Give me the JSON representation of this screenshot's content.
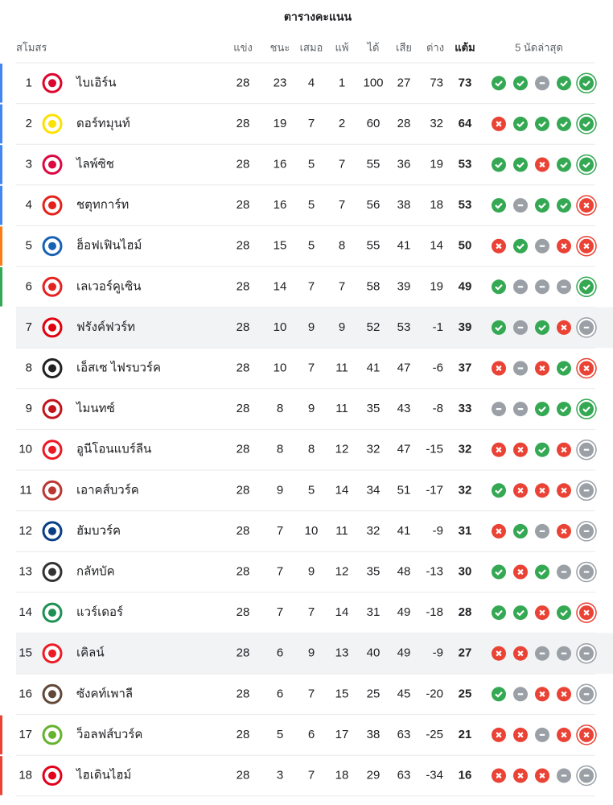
{
  "table": {
    "title": "ตารางคะแนน",
    "headers": [
      "สโมสร",
      "แข่ง",
      "ชนะ",
      "เสมอ",
      "แพ้",
      "ได้",
      "เสีย",
      "ต่าง",
      "แต้ม",
      "5 นัดล่าสุด"
    ],
    "rows": [
      {
        "rank": 1,
        "team": "ไบเอิร์น",
        "stats": [
          28,
          23,
          4,
          1,
          100,
          27,
          73,
          73
        ],
        "form": [
          "W",
          "W",
          "D",
          "W",
          "W"
        ],
        "zone": "#4285f4",
        "crest": "#dc052d"
      },
      {
        "rank": 2,
        "team": "ดอร์ทมุนท์",
        "stats": [
          28,
          19,
          7,
          2,
          60,
          28,
          32,
          64
        ],
        "form": [
          "L",
          "W",
          "W",
          "W",
          "W"
        ],
        "zone": "#4285f4",
        "crest": "#fde100"
      },
      {
        "rank": 3,
        "team": "ไลพ์ซิช",
        "stats": [
          28,
          16,
          5,
          7,
          55,
          36,
          19,
          53
        ],
        "form": [
          "W",
          "W",
          "L",
          "W",
          "W"
        ],
        "zone": "#4285f4",
        "crest": "#dd0741"
      },
      {
        "rank": 4,
        "team": "ชตุทการ์ท",
        "stats": [
          28,
          16,
          5,
          7,
          56,
          38,
          18,
          53
        ],
        "form": [
          "W",
          "D",
          "W",
          "W",
          "L"
        ],
        "zone": "#4285f4",
        "crest": "#e32219"
      },
      {
        "rank": 5,
        "team": "ฮ็อฟเฟินไฮม์",
        "stats": [
          28,
          15,
          5,
          8,
          55,
          41,
          14,
          50
        ],
        "form": [
          "L",
          "W",
          "D",
          "L",
          "L"
        ],
        "zone": "#fa7b17",
        "crest": "#1961b5"
      },
      {
        "rank": 6,
        "team": "เลเวอร์คูเซิน",
        "stats": [
          28,
          14,
          7,
          7,
          58,
          39,
          19,
          49
        ],
        "form": [
          "W",
          "D",
          "D",
          "D",
          "W"
        ],
        "zone": "#34a853",
        "crest": "#e32221"
      },
      {
        "rank": 7,
        "team": "ฟรังค์ฟวร์ท",
        "stats": [
          28,
          10,
          9,
          9,
          52,
          53,
          -1,
          39
        ],
        "form": [
          "W",
          "D",
          "W",
          "L",
          "D"
        ],
        "highlight": "#f1f3f4",
        "crest": "#e1000f"
      },
      {
        "rank": 8,
        "team": "เอ็สเซ ไฟรบวร์ค",
        "stats": [
          28,
          10,
          7,
          11,
          41,
          47,
          -6,
          37
        ],
        "form": [
          "L",
          "D",
          "L",
          "W",
          "L"
        ],
        "crest": "#222222"
      },
      {
        "rank": 9,
        "team": "ไมนทซ์",
        "stats": [
          28,
          8,
          9,
          11,
          35,
          43,
          -8,
          33
        ],
        "form": [
          "D",
          "D",
          "W",
          "W",
          "W"
        ],
        "crest": "#c3141e"
      },
      {
        "rank": 10,
        "team": "อูนีโอนแบร์ลีน",
        "stats": [
          28,
          8,
          8,
          12,
          32,
          47,
          -15,
          32
        ],
        "form": [
          "L",
          "L",
          "W",
          "L",
          "D"
        ],
        "crest": "#eb1923"
      },
      {
        "rank": 11,
        "team": "เอาคส์บวร์ค",
        "stats": [
          28,
          9,
          5,
          14,
          34,
          51,
          -17,
          32
        ],
        "form": [
          "W",
          "L",
          "L",
          "L",
          "D"
        ],
        "crest": "#ba3733"
      },
      {
        "rank": 12,
        "team": "ฮัมบวร์ค",
        "stats": [
          28,
          7,
          10,
          11,
          32,
          41,
          -9,
          31
        ],
        "form": [
          "L",
          "W",
          "D",
          "L",
          "D"
        ],
        "crest": "#0a3f86"
      },
      {
        "rank": 13,
        "team": "กลัทบัค",
        "stats": [
          28,
          7,
          9,
          12,
          35,
          48,
          -13,
          30
        ],
        "form": [
          "W",
          "L",
          "W",
          "D",
          "D"
        ],
        "crest": "#333333"
      },
      {
        "rank": 14,
        "team": "แวร์เดอร์",
        "stats": [
          28,
          7,
          7,
          14,
          31,
          49,
          -18,
          28
        ],
        "form": [
          "W",
          "W",
          "L",
          "W",
          "L"
        ],
        "crest": "#1d9053"
      },
      {
        "rank": 15,
        "team": "เคิลน์",
        "stats": [
          28,
          6,
          9,
          13,
          40,
          49,
          -9,
          27
        ],
        "form": [
          "L",
          "L",
          "D",
          "D",
          "D"
        ],
        "highlight": "#f1f3f4",
        "crest": "#ed1c24"
      },
      {
        "rank": 16,
        "team": "ซังคท์เพาลี",
        "stats": [
          28,
          6,
          7,
          15,
          25,
          45,
          -20,
          25
        ],
        "form": [
          "W",
          "D",
          "L",
          "L",
          "D"
        ],
        "crest": "#624839"
      },
      {
        "rank": 17,
        "team": "ว็อลฟส์บวร์ค",
        "stats": [
          28,
          5,
          6,
          17,
          38,
          63,
          -25,
          21
        ],
        "form": [
          "L",
          "L",
          "D",
          "L",
          "L"
        ],
        "zone": "#ea4335",
        "crest": "#65b32e"
      },
      {
        "rank": 18,
        "team": "ไฮเดินไฮม์",
        "stats": [
          28,
          3,
          7,
          18,
          29,
          63,
          -34,
          16
        ],
        "form": [
          "L",
          "L",
          "L",
          "D",
          "D"
        ],
        "zone": "#ea4335",
        "crest": "#e2001a"
      }
    ]
  }
}
